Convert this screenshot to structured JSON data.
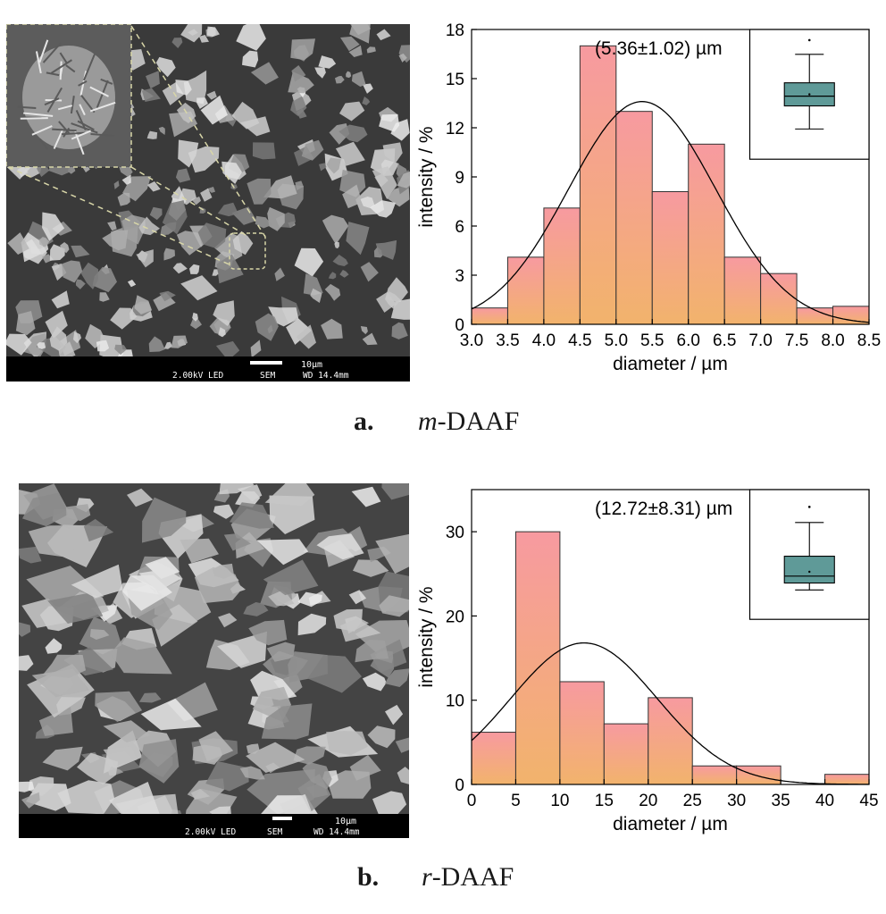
{
  "panels": [
    {
      "letter": "a.",
      "sample_italic": "m",
      "sample_rest": "-DAAF",
      "sem": {
        "scale_label": "10µm",
        "voltage": "2.00kV LED",
        "detector": "SEM",
        "working_distance": "WD 14.4mm",
        "has_inset": true
      }
    },
    {
      "letter": "b.",
      "sample_italic": "r",
      "sample_rest": "-DAAF",
      "sem": {
        "scale_label": "10µm",
        "voltage": "2.00kV LED",
        "detector": "SEM",
        "working_distance": "WD 14.4mm",
        "has_inset": false
      }
    }
  ],
  "colors": {
    "bar_top": "#f79aa0",
    "bar_bottom": "#f2b36c",
    "box_fill": "#5f9a98",
    "axis": "#000000",
    "sem_bg": "#3a3a3a",
    "sem_footer": "#000000"
  },
  "chart_data": [
    {
      "type": "bar",
      "annotation": "(5.36±1.02) µm",
      "xlabel": "diameter / µm",
      "ylabel": "intensity / %",
      "bin_edges": [
        3.0,
        3.5,
        4.0,
        4.5,
        5.0,
        5.5,
        6.0,
        6.5,
        7.0,
        7.5,
        8.0,
        8.5
      ],
      "values": [
        1,
        4.1,
        7.1,
        17,
        13,
        8.1,
        11,
        4.1,
        3.1,
        1,
        1.1
      ],
      "xlim": [
        3.0,
        8.5
      ],
      "ylim": [
        0,
        18
      ],
      "xticks": [
        "3.0",
        "3.5",
        "4.0",
        "4.5",
        "5.0",
        "5.5",
        "6.0",
        "6.5",
        "7.0",
        "7.5",
        "8.0",
        "8.5"
      ],
      "yticks": [
        "0",
        "3",
        "6",
        "9",
        "12",
        "15",
        "18"
      ],
      "normal_fit": {
        "mean": 5.36,
        "sd": 1.02,
        "peak": 13.6
      },
      "boxplot": {
        "whisker_low": 12.9,
        "q1": 14.2,
        "median": 14.75,
        "q3": 15.5,
        "whisker_high": 17.1,
        "mean": 14.85,
        "outlier": 17.9,
        "range": [
          11.2,
          18.5
        ]
      }
    },
    {
      "type": "bar",
      "annotation": "(12.72±8.31) µm",
      "xlabel": "diameter / µm",
      "ylabel": "intensity / %",
      "bin_edges": [
        0,
        5,
        10,
        15,
        20,
        25,
        30,
        35,
        40,
        45
      ],
      "values": [
        6.2,
        30,
        12.2,
        7.2,
        10.3,
        2.2,
        2.2,
        0,
        1.2
      ],
      "xlim": [
        0,
        45
      ],
      "ylim": [
        0,
        35
      ],
      "xticks": [
        "0",
        "5",
        "10",
        "15",
        "20",
        "25",
        "30",
        "35",
        "40",
        "45"
      ],
      "yticks": [
        "0",
        "10",
        "20",
        "30"
      ],
      "normal_fit": {
        "mean": 12.72,
        "sd": 8.31,
        "peak": 16.8
      },
      "boxplot": {
        "whisker_low": 23.4,
        "q1": 24.2,
        "median": 25.0,
        "q3": 27.3,
        "whisker_high": 31.2,
        "mean": 25.5,
        "outlier": 33.0,
        "range": [
          20.0,
          35.0
        ]
      }
    }
  ]
}
